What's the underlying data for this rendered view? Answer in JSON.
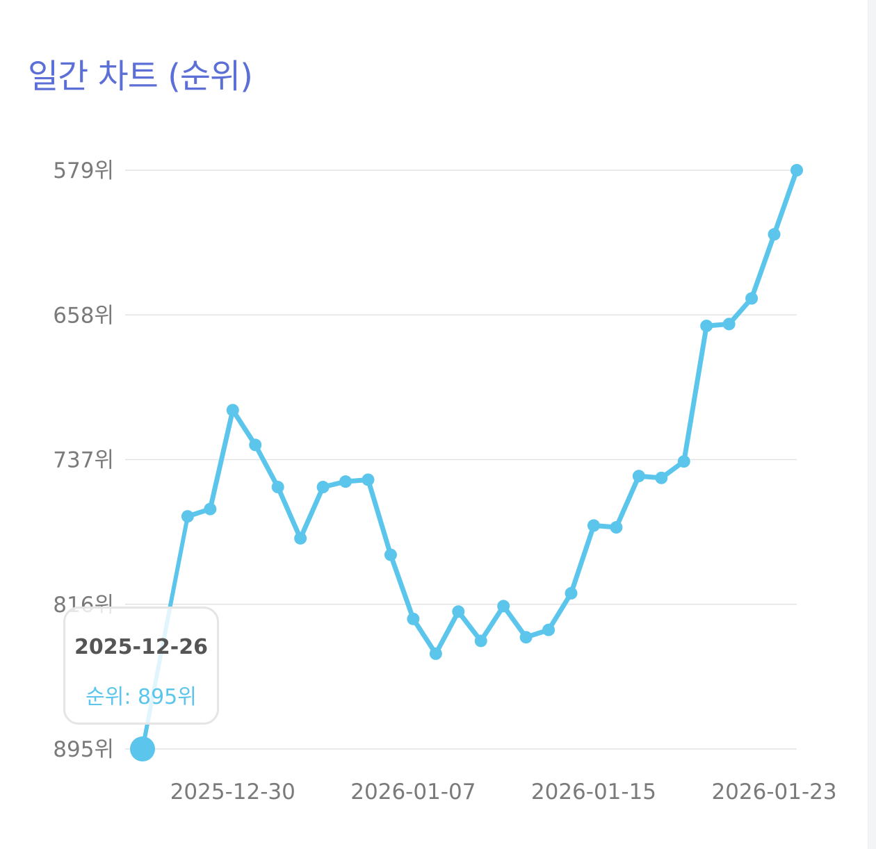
{
  "title": "일간 차트 (순위)",
  "colors": {
    "title": "#5c6fd6",
    "line": "#5bc5ec",
    "grid": "#e3e3e3",
    "tick": "#7a7a7a"
  },
  "tooltip": {
    "date": "2025-12-26",
    "value_text": "순위: 895위"
  },
  "chart_data": {
    "type": "line",
    "title": "일간 차트 (순위)",
    "xlabel": "",
    "ylabel": "",
    "y_inverted": true,
    "ylim": [
      579,
      895
    ],
    "y_ticks": [
      579,
      658,
      737,
      816,
      895
    ],
    "y_tick_labels": [
      "579위",
      "658위",
      "737위",
      "816위",
      "895위"
    ],
    "x_tick_labels": [
      "2025-12-30",
      "2026-01-07",
      "2026-01-15",
      "2026-01-23"
    ],
    "grid": true,
    "legend": "none",
    "series": [
      {
        "x": [
          "2025-12-26",
          "2025-12-28",
          "2025-12-29",
          "2025-12-30",
          "2025-12-31",
          "2026-01-01",
          "2026-01-02",
          "2026-01-03",
          "2026-01-04",
          "2026-01-05",
          "2026-01-06",
          "2026-01-07",
          "2026-01-08",
          "2026-01-09",
          "2026-01-10",
          "2026-01-11",
          "2026-01-12",
          "2026-01-13",
          "2026-01-14",
          "2026-01-15",
          "2026-01-16",
          "2026-01-17",
          "2026-01-18",
          "2026-01-19",
          "2026-01-20",
          "2026-01-21",
          "2026-01-22",
          "2026-01-23",
          "2026-01-24"
        ],
        "values": [
          895,
          768,
          764,
          710,
          729,
          752,
          780,
          752,
          749,
          748,
          789,
          824,
          843,
          820,
          836,
          817,
          834,
          830,
          810,
          773,
          774,
          746,
          747,
          738,
          664,
          663,
          649,
          614,
          579
        ]
      }
    ]
  }
}
